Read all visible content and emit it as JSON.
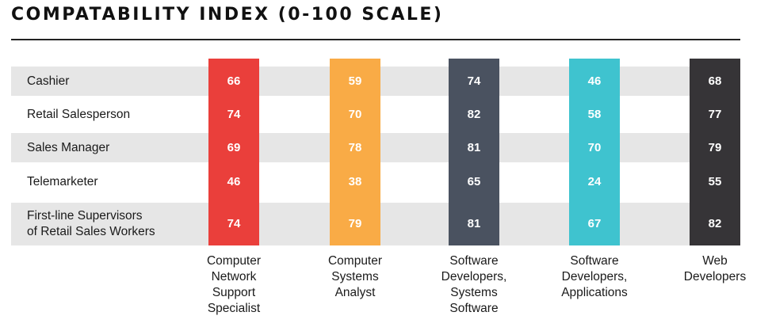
{
  "title": "COMPATABILITY INDEX (0-100 SCALE)",
  "chart_data": {
    "type": "table",
    "title": "COMPATABILITY INDEX (0-100 SCALE)",
    "rows": [
      "Cashier",
      "Retail Salesperson",
      "Sales Manager",
      "Telemarketer",
      "First-line Supervisors\nof Retail Sales Workers"
    ],
    "columns": [
      {
        "name": "Computer\nNetwork\nSupport\nSpecialist",
        "color": "#ea3f3b",
        "values": [
          "66",
          "74",
          "69",
          "46",
          "74"
        ]
      },
      {
        "name": "Computer\nSystems\nAnalyst",
        "color": "#f9ab46",
        "values": [
          "59",
          "70",
          "78",
          "38",
          "79"
        ]
      },
      {
        "name": "Software\nDevelopers,\nSystems\nSoftware",
        "color": "#4a5260",
        "values": [
          "74",
          "82",
          "81",
          "65",
          "81"
        ]
      },
      {
        "name": "Software\nDevelopers,\nApplications",
        "color": "#3fc3cf",
        "values": [
          "46",
          "58",
          "70",
          "24",
          "67"
        ]
      },
      {
        "name": "Web\nDevelopers",
        "color": "#363437",
        "values": [
          "68",
          "77",
          "79",
          "55",
          "82"
        ]
      }
    ]
  }
}
